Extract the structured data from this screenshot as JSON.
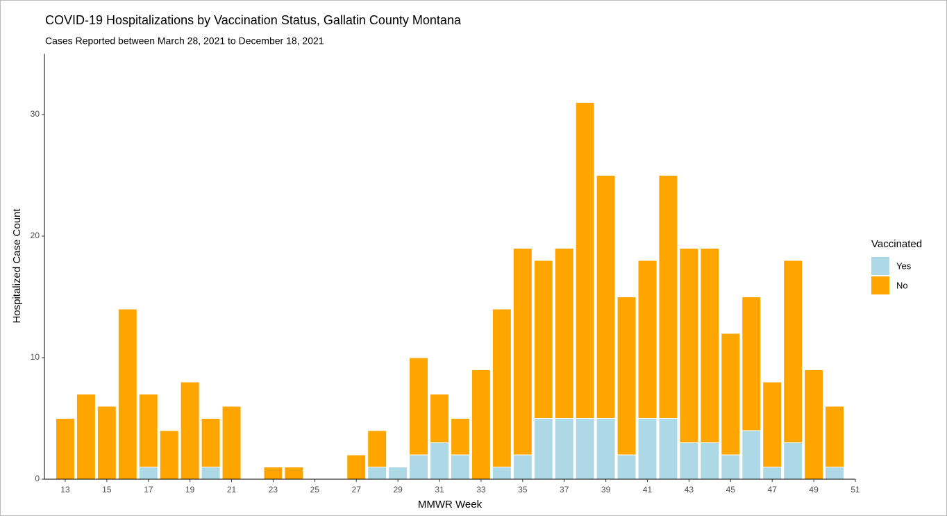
{
  "chart_data": {
    "type": "stacked_bar",
    "title": "COVID-19 Hospitalizations by Vaccination Status, Gallatin County Montana",
    "subtitle": "Cases Reported between March 28, 2021 to December 18, 2021",
    "x_label": "MMWR Week",
    "y_label": "Hospitalized Case Count",
    "legend_title": "Vaccinated",
    "legend_position": "right",
    "x": [
      13,
      14,
      15,
      16,
      17,
      18,
      19,
      20,
      21,
      22,
      23,
      24,
      25,
      26,
      27,
      28,
      29,
      30,
      31,
      32,
      33,
      34,
      35,
      36,
      37,
      38,
      39,
      40,
      41,
      42,
      43,
      44,
      45,
      46,
      47,
      48,
      49,
      50
    ],
    "series": [
      {
        "name": "Yes",
        "color": "#add8e6",
        "values": [
          0,
          0,
          0,
          0,
          1,
          0,
          0,
          1,
          0,
          0,
          0,
          0,
          0,
          0,
          0,
          1,
          1,
          2,
          3,
          2,
          0,
          1,
          2,
          5,
          5,
          5,
          5,
          2,
          5,
          5,
          3,
          3,
          2,
          4,
          1,
          3,
          0,
          1
        ]
      },
      {
        "name": "No",
        "color": "#ffa500",
        "values": [
          5,
          7,
          6,
          14,
          6,
          4,
          8,
          4,
          6,
          0,
          1,
          1,
          0,
          0,
          2,
          3,
          0,
          8,
          4,
          3,
          9,
          13,
          17,
          13,
          14,
          26,
          20,
          13,
          13,
          20,
          16,
          16,
          10,
          11,
          7,
          15,
          9,
          5
        ]
      }
    ],
    "xlim": [
      12,
      51
    ],
    "xticks": [
      13,
      15,
      17,
      19,
      21,
      23,
      25,
      27,
      29,
      31,
      33,
      35,
      37,
      39,
      41,
      43,
      45,
      47,
      49,
      51
    ],
    "ylim": [
      0,
      35
    ],
    "yticks": [
      0,
      10,
      20,
      30
    ],
    "grid": false
  }
}
